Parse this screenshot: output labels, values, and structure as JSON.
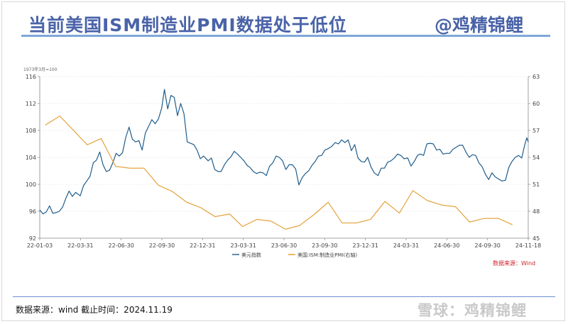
{
  "title": "当前美国ISM制造业PMI数据处于低位",
  "author": "@鸡精锦鲤",
  "unit_label": "1973年3月=100",
  "source_inner": "数据来源：Wind",
  "footer": "数据来源：wind 截止时间：2024.11.19",
  "watermark": "雪球：鸡精锦鲤",
  "colors": {
    "dollar": "#1f5d8c",
    "pmi": "#e39a2a"
  },
  "chart_data": {
    "type": "line",
    "x_tick_labels": [
      "22-01-03",
      "22-03-31",
      "22-06-30",
      "22-09-30",
      "22-12-31",
      "23-03-31",
      "23-06-30",
      "23-09-30",
      "23-12-31",
      "24-03-31",
      "24-06-30",
      "24-09-30",
      "24-11-18"
    ],
    "y_left": {
      "min": 92,
      "max": 116,
      "ticks": [
        92,
        96,
        100,
        104,
        108,
        112,
        116
      ]
    },
    "y_right": {
      "min": 45,
      "max": 63,
      "ticks": [
        45,
        48,
        51,
        54,
        57,
        60,
        63
      ]
    },
    "legend": [
      "美元指数",
      "美国:ISM:制造业PMI(右轴)"
    ],
    "series": [
      {
        "name": "美元指数",
        "axis": "left",
        "points": [
          [
            "2022-01-03",
            96.2
          ],
          [
            "2022-01-10",
            95.6
          ],
          [
            "2022-01-17",
            95.9
          ],
          [
            "2022-01-24",
            96.8
          ],
          [
            "2022-01-31",
            95.7
          ],
          [
            "2022-02-07",
            95.8
          ],
          [
            "2022-02-14",
            96.0
          ],
          [
            "2022-02-21",
            96.6
          ],
          [
            "2022-02-28",
            97.9
          ],
          [
            "2022-03-07",
            99.0
          ],
          [
            "2022-03-14",
            98.2
          ],
          [
            "2022-03-21",
            98.8
          ],
          [
            "2022-03-31",
            98.3
          ],
          [
            "2022-04-07",
            99.8
          ],
          [
            "2022-04-14",
            100.5
          ],
          [
            "2022-04-21",
            101.2
          ],
          [
            "2022-04-28",
            103.2
          ],
          [
            "2022-05-05",
            103.6
          ],
          [
            "2022-05-12",
            104.8
          ],
          [
            "2022-05-19",
            102.9
          ],
          [
            "2022-05-26",
            101.9
          ],
          [
            "2022-06-02",
            102.1
          ],
          [
            "2022-06-09",
            103.2
          ],
          [
            "2022-06-16",
            104.6
          ],
          [
            "2022-06-23",
            104.2
          ],
          [
            "2022-06-30",
            104.7
          ],
          [
            "2022-07-07",
            107.0
          ],
          [
            "2022-07-14",
            108.5
          ],
          [
            "2022-07-21",
            106.7
          ],
          [
            "2022-07-28",
            106.3
          ],
          [
            "2022-08-04",
            106.5
          ],
          [
            "2022-08-11",
            105.1
          ],
          [
            "2022-08-18",
            107.6
          ],
          [
            "2022-08-25",
            108.6
          ],
          [
            "2022-09-01",
            109.6
          ],
          [
            "2022-09-08",
            109.0
          ],
          [
            "2022-09-15",
            109.7
          ],
          [
            "2022-09-22",
            111.3
          ],
          [
            "2022-09-28",
            114.1
          ],
          [
            "2022-10-05",
            111.2
          ],
          [
            "2022-10-12",
            113.2
          ],
          [
            "2022-10-19",
            112.9
          ],
          [
            "2022-10-26",
            110.2
          ],
          [
            "2022-11-02",
            112.0
          ],
          [
            "2022-11-09",
            110.5
          ],
          [
            "2022-11-16",
            106.3
          ],
          [
            "2022-11-23",
            106.1
          ],
          [
            "2022-11-30",
            105.9
          ],
          [
            "2022-12-07",
            105.1
          ],
          [
            "2022-12-14",
            103.8
          ],
          [
            "2022-12-21",
            104.2
          ],
          [
            "2022-12-31",
            103.5
          ],
          [
            "2023-01-07",
            103.9
          ],
          [
            "2023-01-14",
            102.2
          ],
          [
            "2023-01-21",
            101.9
          ],
          [
            "2023-01-28",
            101.9
          ],
          [
            "2023-02-04",
            102.9
          ],
          [
            "2023-02-11",
            103.6
          ],
          [
            "2023-02-18",
            104.1
          ],
          [
            "2023-02-25",
            104.9
          ],
          [
            "2023-03-04",
            104.5
          ],
          [
            "2023-03-11",
            104.0
          ],
          [
            "2023-03-18",
            103.5
          ],
          [
            "2023-03-25",
            102.8
          ],
          [
            "2023-03-31",
            102.5
          ],
          [
            "2023-04-07",
            101.9
          ],
          [
            "2023-04-14",
            101.6
          ],
          [
            "2023-04-21",
            101.8
          ],
          [
            "2023-04-28",
            101.7
          ],
          [
            "2023-05-05",
            101.3
          ],
          [
            "2023-05-12",
            102.7
          ],
          [
            "2023-05-19",
            103.2
          ],
          [
            "2023-05-26",
            104.2
          ],
          [
            "2023-06-02",
            104.0
          ],
          [
            "2023-06-09",
            103.5
          ],
          [
            "2023-06-16",
            102.2
          ],
          [
            "2023-06-23",
            102.9
          ],
          [
            "2023-06-30",
            102.9
          ],
          [
            "2023-07-07",
            102.3
          ],
          [
            "2023-07-14",
            99.9
          ],
          [
            "2023-07-21",
            101.0
          ],
          [
            "2023-07-28",
            101.6
          ],
          [
            "2023-08-04",
            102.0
          ],
          [
            "2023-08-11",
            102.8
          ],
          [
            "2023-08-18",
            103.4
          ],
          [
            "2023-08-25",
            104.2
          ],
          [
            "2023-09-01",
            104.3
          ],
          [
            "2023-09-08",
            105.1
          ],
          [
            "2023-09-15",
            105.3
          ],
          [
            "2023-09-22",
            105.6
          ],
          [
            "2023-09-30",
            106.2
          ],
          [
            "2023-10-07",
            106.0
          ],
          [
            "2023-10-14",
            106.6
          ],
          [
            "2023-10-21",
            106.2
          ],
          [
            "2023-10-28",
            106.6
          ],
          [
            "2023-11-04",
            105.0
          ],
          [
            "2023-11-11",
            105.9
          ],
          [
            "2023-11-18",
            103.9
          ],
          [
            "2023-11-25",
            103.4
          ],
          [
            "2023-12-02",
            103.3
          ],
          [
            "2023-12-09",
            104.0
          ],
          [
            "2023-12-16",
            102.6
          ],
          [
            "2023-12-23",
            101.7
          ],
          [
            "2023-12-31",
            101.3
          ],
          [
            "2024-01-07",
            102.4
          ],
          [
            "2024-01-14",
            102.4
          ],
          [
            "2024-01-21",
            103.3
          ],
          [
            "2024-01-28",
            103.5
          ],
          [
            "2024-02-04",
            103.9
          ],
          [
            "2024-02-11",
            104.5
          ],
          [
            "2024-02-18",
            104.3
          ],
          [
            "2024-02-25",
            103.8
          ],
          [
            "2024-03-04",
            103.9
          ],
          [
            "2024-03-11",
            102.7
          ],
          [
            "2024-03-18",
            103.4
          ],
          [
            "2024-03-25",
            104.3
          ],
          [
            "2024-03-31",
            104.5
          ],
          [
            "2024-04-07",
            104.3
          ],
          [
            "2024-04-14",
            106.0
          ],
          [
            "2024-04-21",
            106.1
          ],
          [
            "2024-04-28",
            106.0
          ],
          [
            "2024-05-05",
            105.1
          ],
          [
            "2024-05-12",
            105.2
          ],
          [
            "2024-05-19",
            104.5
          ],
          [
            "2024-05-26",
            104.6
          ],
          [
            "2024-06-02",
            104.6
          ],
          [
            "2024-06-09",
            105.2
          ],
          [
            "2024-06-16",
            105.5
          ],
          [
            "2024-06-23",
            105.8
          ],
          [
            "2024-06-30",
            105.8
          ],
          [
            "2024-07-07",
            104.8
          ],
          [
            "2024-07-14",
            104.0
          ],
          [
            "2024-07-21",
            104.4
          ],
          [
            "2024-07-28",
            104.3
          ],
          [
            "2024-08-04",
            103.2
          ],
          [
            "2024-08-11",
            102.6
          ],
          [
            "2024-08-18",
            101.5
          ],
          [
            "2024-08-25",
            100.7
          ],
          [
            "2024-09-01",
            101.7
          ],
          [
            "2024-09-08",
            101.1
          ],
          [
            "2024-09-15",
            100.8
          ],
          [
            "2024-09-22",
            100.5
          ],
          [
            "2024-09-30",
            100.6
          ],
          [
            "2024-10-07",
            102.5
          ],
          [
            "2024-10-14",
            103.4
          ],
          [
            "2024-10-21",
            104.0
          ],
          [
            "2024-10-28",
            104.3
          ],
          [
            "2024-11-04",
            103.9
          ],
          [
            "2024-11-11",
            106.0
          ],
          [
            "2024-11-15",
            106.9
          ],
          [
            "2024-11-18",
            106.3
          ]
        ]
      },
      {
        "name": "美国:ISM:制造业PMI(右轴)",
        "axis": "right",
        "points": [
          [
            "2022-01-15",
            57.6
          ],
          [
            "2022-02-15",
            58.6
          ],
          [
            "2022-03-15",
            57.1
          ],
          [
            "2022-04-15",
            55.4
          ],
          [
            "2022-05-15",
            56.1
          ],
          [
            "2022-06-15",
            53.0
          ],
          [
            "2022-07-15",
            52.8
          ],
          [
            "2022-08-15",
            52.8
          ],
          [
            "2022-09-15",
            50.9
          ],
          [
            "2022-10-15",
            50.2
          ],
          [
            "2022-11-15",
            49.0
          ],
          [
            "2022-12-15",
            48.4
          ],
          [
            "2023-01-15",
            47.4
          ],
          [
            "2023-02-15",
            47.7
          ],
          [
            "2023-03-15",
            46.3
          ],
          [
            "2023-04-15",
            47.1
          ],
          [
            "2023-05-15",
            46.9
          ],
          [
            "2023-06-15",
            46.0
          ],
          [
            "2023-07-15",
            46.4
          ],
          [
            "2023-08-15",
            47.6
          ],
          [
            "2023-09-15",
            49.0
          ],
          [
            "2023-10-15",
            46.7
          ],
          [
            "2023-11-15",
            46.7
          ],
          [
            "2023-12-15",
            47.1
          ],
          [
            "2024-01-15",
            49.1
          ],
          [
            "2024-02-15",
            47.8
          ],
          [
            "2024-03-15",
            50.3
          ],
          [
            "2024-04-15",
            49.2
          ],
          [
            "2024-05-15",
            48.7
          ],
          [
            "2024-06-15",
            48.5
          ],
          [
            "2024-07-15",
            46.8
          ],
          [
            "2024-08-15",
            47.2
          ],
          [
            "2024-09-15",
            47.2
          ],
          [
            "2024-10-15",
            46.5
          ]
        ]
      }
    ]
  }
}
